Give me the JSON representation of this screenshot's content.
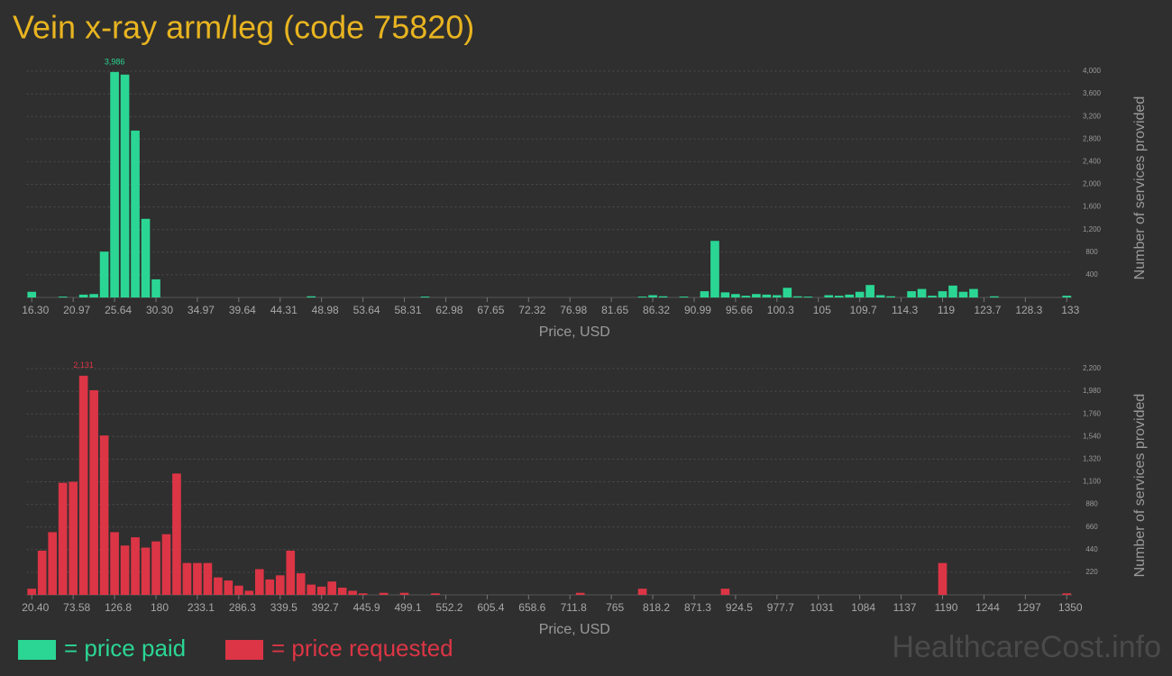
{
  "title": "Vein x-ray arm/leg (code 75820)",
  "watermark": "HealthcareCost.info",
  "chart_data": [
    {
      "type": "bar",
      "color": "#2bd694",
      "legend_label": "= price paid",
      "xlabel": "Price, USD",
      "ylabel": "Number of services provided",
      "grid": true,
      "ylim": [
        0,
        4000
      ],
      "yticks": [
        {
          "value": 400,
          "label": "400"
        },
        {
          "value": 800,
          "label": "800"
        },
        {
          "value": 1200,
          "label": "1,200"
        },
        {
          "value": 1600,
          "label": "1,600"
        },
        {
          "value": 2000,
          "label": "2,000"
        },
        {
          "value": 2400,
          "label": "2,400"
        },
        {
          "value": 2800,
          "label": "2,800"
        },
        {
          "value": 3200,
          "label": "3,200"
        },
        {
          "value": 3600,
          "label": "3,600"
        },
        {
          "value": 4000,
          "label": "4,000"
        }
      ],
      "categories": [
        "16.30",
        null,
        null,
        null,
        "20.97",
        null,
        null,
        null,
        "25.64",
        null,
        null,
        null,
        "30.30",
        null,
        null,
        null,
        "34.97",
        null,
        null,
        null,
        "39.64",
        null,
        null,
        null,
        "44.31",
        null,
        null,
        null,
        "48.98",
        null,
        null,
        null,
        "53.64",
        null,
        null,
        null,
        "58.31",
        null,
        null,
        null,
        "62.98",
        null,
        null,
        null,
        "67.65",
        null,
        null,
        null,
        "72.32",
        null,
        null,
        null,
        "76.98",
        null,
        null,
        null,
        "81.65",
        null,
        null,
        null,
        "86.32",
        null,
        null,
        null,
        "90.99",
        null,
        null,
        null,
        "95.66",
        null,
        null,
        null,
        "100.3",
        null,
        null,
        null,
        "105",
        null,
        null,
        null,
        "109.7",
        null,
        null,
        null,
        "114.3",
        null,
        null,
        null,
        "119",
        null,
        null,
        null,
        "123.7",
        null,
        null,
        null,
        "128.3",
        null,
        null,
        null,
        "133"
      ],
      "values": [
        100,
        0,
        0,
        15,
        0,
        50,
        60,
        810,
        3986,
        3940,
        2950,
        1390,
        320,
        0,
        0,
        0,
        0,
        0,
        0,
        0,
        0,
        0,
        0,
        0,
        0,
        0,
        0,
        20,
        0,
        0,
        0,
        0,
        0,
        0,
        0,
        0,
        0,
        0,
        15,
        0,
        0,
        0,
        0,
        0,
        0,
        0,
        0,
        0,
        0,
        0,
        0,
        0,
        0,
        0,
        0,
        0,
        0,
        0,
        0,
        15,
        40,
        20,
        0,
        15,
        0,
        110,
        1000,
        90,
        60,
        30,
        60,
        50,
        40,
        170,
        20,
        15,
        0,
        40,
        30,
        50,
        100,
        220,
        40,
        20,
        0,
        110,
        150,
        30,
        110,
        210,
        100,
        150,
        0,
        20,
        0,
        0,
        0,
        0,
        0,
        0,
        30
      ],
      "value_labels": [
        null,
        null,
        null,
        null,
        null,
        null,
        null,
        null,
        "3,986",
        null,
        null,
        null,
        null,
        null,
        null,
        null,
        null,
        null,
        null,
        null,
        null,
        null,
        null,
        null,
        null,
        null,
        null,
        null,
        null,
        null,
        null,
        null,
        null,
        null,
        null,
        null,
        null,
        null,
        null,
        null,
        null,
        null,
        null,
        null,
        null,
        null,
        null,
        null,
        null,
        null,
        null,
        null,
        null,
        null,
        null,
        null,
        null,
        null,
        null,
        null,
        null,
        null,
        null,
        null,
        null,
        null,
        null,
        null,
        null,
        null,
        null,
        null,
        null,
        null,
        null,
        null,
        null,
        null,
        null,
        null,
        null,
        null,
        null,
        null,
        null,
        null,
        null,
        null,
        null,
        null,
        null,
        null,
        null,
        null,
        null,
        null,
        null,
        null,
        null,
        null,
        null
      ]
    },
    {
      "type": "bar",
      "color": "#dc3545",
      "legend_label": "= price requested",
      "xlabel": "Price, USD",
      "ylabel": "Number of services provided",
      "grid": true,
      "ylim": [
        0,
        2200
      ],
      "yticks": [
        220,
        440,
        660,
        880,
        {
          "value": 1100,
          "label": "1,100"
        },
        {
          "value": 1320,
          "label": "1,320"
        },
        {
          "value": 1540,
          "label": "1,540"
        },
        {
          "value": 1760,
          "label": "1,760"
        },
        {
          "value": 1980,
          "label": "1,980"
        },
        {
          "value": 2200,
          "label": "2,200"
        }
      ],
      "categories": [
        "20.40",
        null,
        null,
        null,
        "73.58",
        null,
        null,
        null,
        "126.8",
        null,
        null,
        null,
        "180",
        null,
        null,
        null,
        "233.1",
        null,
        null,
        null,
        "286.3",
        null,
        null,
        null,
        "339.5",
        null,
        null,
        null,
        "392.7",
        null,
        null,
        null,
        "445.9",
        null,
        null,
        null,
        "499.1",
        null,
        null,
        null,
        "552.2",
        null,
        null,
        null,
        "605.4",
        null,
        null,
        null,
        "658.6",
        null,
        null,
        null,
        "711.8",
        null,
        null,
        null,
        "765",
        null,
        null,
        null,
        "818.2",
        null,
        null,
        null,
        "871.3",
        null,
        null,
        null,
        "924.5",
        null,
        null,
        null,
        "977.7",
        null,
        null,
        null,
        "1031",
        null,
        null,
        null,
        "1084",
        null,
        null,
        null,
        "1137",
        null,
        null,
        null,
        "1190",
        null,
        null,
        null,
        "1244",
        null,
        null,
        null,
        "1297",
        null,
        null,
        null,
        "1350"
      ],
      "values": [
        60,
        430,
        610,
        1090,
        1100,
        2131,
        1990,
        1550,
        610,
        480,
        560,
        460,
        520,
        590,
        1180,
        310,
        310,
        310,
        170,
        140,
        90,
        40,
        250,
        150,
        190,
        430,
        210,
        100,
        80,
        130,
        70,
        40,
        15,
        0,
        20,
        0,
        20,
        0,
        0,
        15,
        0,
        0,
        0,
        0,
        0,
        0,
        0,
        0,
        0,
        0,
        0,
        0,
        0,
        20,
        0,
        0,
        0,
        0,
        0,
        60,
        0,
        0,
        0,
        0,
        0,
        0,
        0,
        60,
        0,
        0,
        0,
        0,
        0,
        0,
        0,
        0,
        0,
        0,
        0,
        0,
        0,
        0,
        0,
        0,
        0,
        0,
        0,
        0,
        310,
        0,
        0,
        0,
        0,
        0,
        0,
        0,
        0,
        0,
        0,
        0,
        15
      ],
      "value_labels": [
        null,
        null,
        null,
        null,
        null,
        "2,131",
        null,
        null,
        null,
        null,
        null,
        null,
        null,
        null,
        null,
        null,
        null,
        null,
        null,
        null,
        null,
        null,
        null,
        null,
        null,
        null,
        null,
        null,
        null,
        null,
        null,
        null,
        null,
        null,
        null,
        null,
        null,
        null,
        null,
        null,
        null,
        null,
        null,
        null,
        null,
        null,
        null,
        null,
        null,
        null,
        null,
        null,
        null,
        null,
        null,
        null,
        null,
        null,
        null,
        null,
        null,
        null,
        null,
        null,
        null,
        null,
        null,
        null,
        null,
        null,
        null,
        null,
        null,
        null,
        null,
        null,
        null,
        null,
        null,
        null,
        null,
        null,
        null,
        null,
        null,
        null,
        null,
        null,
        null,
        null,
        null,
        null,
        null,
        null,
        null,
        null,
        null,
        null,
        null,
        null,
        null
      ]
    }
  ]
}
